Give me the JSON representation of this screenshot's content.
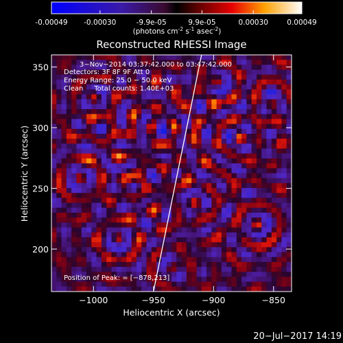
{
  "colors": {
    "background": "#000000",
    "text": "#ffffff"
  },
  "colorbar": {
    "ticks": [
      "-0.00049",
      "-0.00030",
      "-9.9e-05",
      "9.9e-05",
      "0.00030",
      "0.00049"
    ],
    "tick_values": [
      -0.00049,
      -0.0003,
      -9.9e-05,
      9.9e-05,
      0.0003,
      0.00049
    ],
    "range": [
      -0.00049,
      0.00049
    ],
    "units": "(photons cm",
    "units_exp1": "-2",
    "units_s": " s",
    "units_exp2": "-1",
    "units_asec": " asec",
    "units_exp3": "-2",
    "units_close": ")"
  },
  "chart_data": {
    "type": "heatmap",
    "title": "Reconstructed RHESSI Image",
    "xlabel": "Heliocentric X (arcsec)",
    "ylabel": "Heliocentric Y (arcsec)",
    "xlim": [
      -1035,
      -835
    ],
    "ylim": [
      165,
      360
    ],
    "x_ticks": [
      {
        "value": -1000,
        "label": "−1000"
      },
      {
        "value": -950,
        "label": "−950"
      },
      {
        "value": -900,
        "label": "−900"
      },
      {
        "value": -850,
        "label": "−850"
      }
    ],
    "y_ticks": [
      {
        "value": 200,
        "label": "200"
      },
      {
        "value": 250,
        "label": "250"
      },
      {
        "value": 300,
        "label": "300"
      },
      {
        "value": 350,
        "label": "350"
      }
    ],
    "limb_line": [
      [
        -950,
        165
      ],
      [
        -910,
        360
      ]
    ],
    "peak": [
      -878,
      213
    ],
    "legend": [
      "3−Nov−2014 03:37:42.000 to 03:47:42.000",
      "Detectors: 3F 8F 9F Att 0",
      "Energy Range: 25.0 − 50.0 keV",
      "Clean     Total counts: 1.40E+03"
    ],
    "peak_label": "Position of Peak: = [−878,213]"
  },
  "footer": {
    "timestamp": "20−Jul−2017 14:19"
  }
}
